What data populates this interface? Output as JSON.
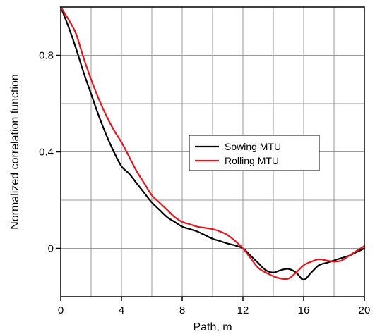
{
  "chart_data": {
    "type": "line",
    "xlabel": "Path, m",
    "ylabel": "Normalized correlation function",
    "xlim": [
      0,
      20
    ],
    "ylim": [
      -0.2,
      1.0
    ],
    "xticks": [
      0,
      4,
      8,
      12,
      16,
      20
    ],
    "xtick_labels": [
      "0",
      "4",
      "8",
      "12",
      "16",
      "20"
    ],
    "yticks": [
      0,
      0.4,
      0.8
    ],
    "ytick_labels": [
      "0",
      "0.4",
      "0.8"
    ],
    "grid": true,
    "legend_position": "center-right",
    "series": [
      {
        "name": "Sowing MTU",
        "color": "#000000",
        "x": [
          0,
          0.5,
          1,
          1.5,
          2,
          2.5,
          3,
          3.5,
          4,
          4.5,
          5,
          5.5,
          6,
          6.5,
          7,
          7.5,
          8,
          8.5,
          9,
          9.5,
          10,
          10.5,
          11,
          11.5,
          12,
          12.5,
          13,
          13.5,
          14,
          14.5,
          15,
          15.5,
          16,
          16.5,
          17,
          17.5,
          18,
          18.5,
          19,
          19.5,
          20
        ],
        "y": [
          1.0,
          0.92,
          0.83,
          0.73,
          0.64,
          0.55,
          0.47,
          0.4,
          0.34,
          0.31,
          0.27,
          0.23,
          0.19,
          0.16,
          0.13,
          0.11,
          0.09,
          0.08,
          0.07,
          0.055,
          0.04,
          0.03,
          0.02,
          0.012,
          0.0,
          -0.03,
          -0.06,
          -0.09,
          -0.1,
          -0.09,
          -0.085,
          -0.1,
          -0.13,
          -0.1,
          -0.07,
          -0.06,
          -0.05,
          -0.04,
          -0.03,
          -0.015,
          0.0
        ]
      },
      {
        "name": "Rolling MTU",
        "color": "#e8141c",
        "x": [
          0,
          0.5,
          1,
          1.5,
          2,
          2.5,
          3,
          3.5,
          4,
          4.5,
          5,
          5.5,
          6,
          6.5,
          7,
          7.5,
          8,
          8.5,
          9,
          9.5,
          10,
          10.5,
          11,
          11.5,
          12,
          12.5,
          13,
          13.5,
          14,
          14.5,
          15,
          15.5,
          16,
          16.5,
          17,
          17.5,
          18,
          18.5,
          19,
          19.5,
          20
        ],
        "y": [
          1.0,
          0.95,
          0.89,
          0.79,
          0.7,
          0.62,
          0.55,
          0.49,
          0.44,
          0.38,
          0.32,
          0.27,
          0.22,
          0.19,
          0.16,
          0.13,
          0.11,
          0.1,
          0.09,
          0.085,
          0.08,
          0.07,
          0.055,
          0.03,
          0.0,
          -0.04,
          -0.08,
          -0.1,
          -0.115,
          -0.125,
          -0.125,
          -0.1,
          -0.07,
          -0.055,
          -0.045,
          -0.05,
          -0.055,
          -0.05,
          -0.03,
          -0.01,
          0.01
        ]
      }
    ]
  }
}
